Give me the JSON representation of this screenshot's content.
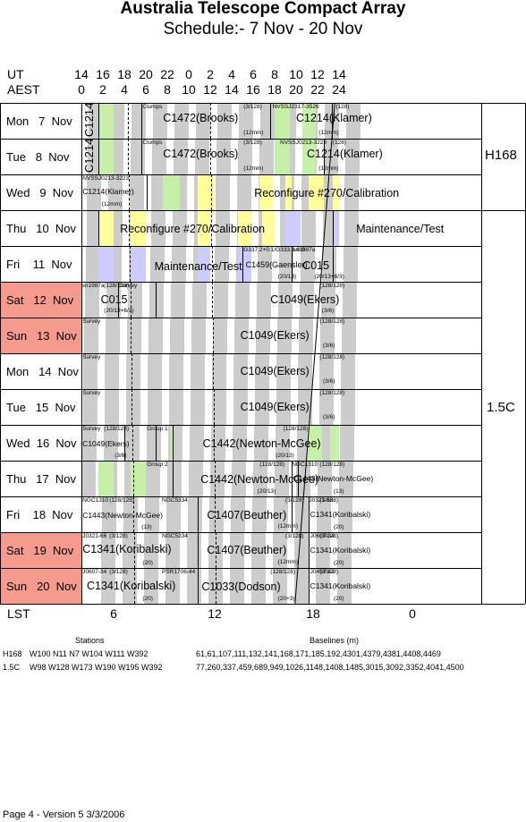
{
  "header": {
    "title": "Australia Telescope Compact Array",
    "subtitle": "Schedule:- 7  Nov - 20 Nov"
  },
  "axes": {
    "ut_label": "UT",
    "aest_label": "AEST",
    "lst_label": "LST",
    "ut_ticks": [
      "14",
      "16",
      "18",
      "20",
      "22",
      "0",
      "2",
      "4",
      "6",
      "8",
      "10",
      "12",
      "14"
    ],
    "aest_ticks": [
      "0",
      "2",
      "4",
      "6",
      "8",
      "10",
      "12",
      "14",
      "16",
      "18",
      "20",
      "22",
      "24"
    ],
    "lst_ticks": [
      "6",
      "12",
      "18",
      "0"
    ]
  },
  "days": [
    {
      "label": "Mon   7  Nov",
      "weekend": false
    },
    {
      "label": "Tue   8  Nov",
      "weekend": false
    },
    {
      "label": "Wed   9  Nov",
      "weekend": false
    },
    {
      "label": "Thu   10  Nov",
      "weekend": false
    },
    {
      "label": "Fri    11  Nov",
      "weekend": false
    },
    {
      "label": "Sat   12  Nov",
      "weekend": true
    },
    {
      "label": "Sun   13  Nov",
      "weekend": true
    },
    {
      "label": "Mon   14  Nov",
      "weekend": false
    },
    {
      "label": "Tue   15  Nov",
      "weekend": false
    },
    {
      "label": "Wed  16  Nov",
      "weekend": false
    },
    {
      "label": "Thu   17  Nov",
      "weekend": false
    },
    {
      "label": "Fri    18  Nov",
      "weekend": false
    },
    {
      "label": "Sat   19  Nov",
      "weekend": true
    },
    {
      "label": "Sun   20  Nov",
      "weekend": true
    }
  ],
  "configs": {
    "c1": "H168",
    "c2": "1.5C"
  },
  "blocks": {
    "r0_vert": "C1214",
    "r0_clumps": "Clumps",
    "r0_main": "C1472(Brooks)",
    "r0_band": "(3/128)",
    "r0_12mm": "(12mm)",
    "r0_nvss": "NVSSJ2317-3526",
    "r0_k": "C1214(Klamer)",
    "r0_kband": "(128)",
    "r0_k12": "(12mm)",
    "r1_vert": "C1214",
    "r1_clumps": "Clumps",
    "r1_main": "C1472(Brooks)",
    "r1_band": "(3/128)",
    "r1_12mm": "(12mm)",
    "r1_nvss": "NVSSJ0213-3223",
    "r1_k": "C1214(Klamer)",
    "r1_kband": "(128)",
    "r1_k12": "(12mm)",
    "r2_nvss": "NVSSJ0213-3223",
    "r2_k": "C1214(Klamer)",
    "r2_12": "(12mm)",
    "r2_main": "Reconfigure #270/Calibration",
    "r3_a": "Reconfigure #270/Calibration",
    "r3_b": "Maintenance/Test",
    "r4_a": "Maintenance/Test",
    "r4_src": "G337.2+0.1/G333.3-0.0",
    "r4_c1459": "C1459(Gaensler)",
    "r4_2013": "(20/13)",
    "r4_sn": "sn1987a",
    "r4_c015": "C015",
    "r4_band": "(20/13+6/3)",
    "r5_sn": "sn1987a",
    "r5_band": "(128/128)",
    "r5_survey": "Survey",
    "r5_c015": "C015",
    "r5_b2": "(20/13+6/3)",
    "r5_main": "C1049(Ekers)",
    "r5_rb": "(128/128)",
    "r5_r36": "(3/6)",
    "r6_survey": "Survey",
    "r6_main": "C1049(Ekers)",
    "r6_rb": "(128/128)",
    "r6_r36": "(3/6)",
    "r7_survey": "Survey",
    "r7_main": "C1049(Ekers)",
    "r7_rb": "(128/128)",
    "r7_r36": "(3/6)",
    "r8_survey": "Survey",
    "r8_main": "C1049(Ekers)",
    "r8_rb": "(128/128)",
    "r8_r36": "(3/6)",
    "r9_survey": "Survey",
    "r9_band": "(128/128)",
    "r9_ek": "C1049(Ekers)",
    "r9_36": "(3/6)",
    "r9_group": "Group 1",
    "r9_main": "C1442(Newton-McGee)",
    "r9_2013": "(20/13)",
    "r9_rb": "(128/128)",
    "r10_group": "Group 2",
    "r10_main": "C1442(Newton-McGee)",
    "r10_band": "(128/128)",
    "r10_2013": "(20/13)",
    "r10_ngc": "NGC1310",
    "r10_c1443": "C1443(Newton-McGee)",
    "r10_rb": "(128/128)",
    "r10_13": "(13)",
    "r11_ngc": "NGC1310",
    "r11_band": "(128/128)",
    "r11_c1443": "C1443(Newton-McGee)",
    "r11_13": "(13)",
    "r11_ngc2": "NGC5334",
    "r11_main": "C1407(Beuther)",
    "r11_b2": "(3/128)",
    "r11_12": "(12mm)",
    "r11_j": "J0321-66",
    "r11_c1341": "C1341(Koribalski)",
    "r11_rb": "(3/128)",
    "r11_20": "(20)",
    "r12_j": "J0321-66",
    "r12_band": "(3/128)",
    "r12_c1341": "C1341(Koribalski)",
    "r12_20": "(20)",
    "r12_ngc": "NGC5334",
    "r12_main": "C1407(Beuther)",
    "r12_b2": "(3/128)",
    "r12_12": "(12mm)",
    "r12_j2": "J0607-34",
    "r12_c1341b": "C1341(Koribalski)",
    "r12_rb": "(3/128)",
    "r12_20b": "(20)",
    "r13_j": "J0607-34",
    "r13_band": "(3/128)",
    "r13_c1341": "C1341(Koribalski)",
    "r13_20": "(20)",
    "r13_psr": "PSR1706-44",
    "r13_main": "C1033(Dodson)",
    "r13_b2": "(128/128)",
    "r13_203": "(20+3)",
    "r13_j2": "J0457-42",
    "r13_c1341b": "C1341(Koribalski)",
    "r13_rb": "(3/128)",
    "r13_20b": "(20)"
  },
  "footer": {
    "stations_label": "Stations",
    "baselines_label": "Baselines (m)",
    "h168_name": "H168",
    "h168_stations": "W100  N11  N7  W104  W111  W392",
    "h168_baselines": "61,61,107,111,132,141,168,171,185,192,4301,4379,4381,4408,4469",
    "c15_name": "1.5C",
    "c15_stations": "W98  W128  W173  W190  W195  W392",
    "c15_baselines": "77,260,337,459,689,949,1026,1148,1408,1485,3015,3092,3352,4041,4500",
    "page": "Page 4 - Version 5  3/3/2006"
  },
  "colors": {
    "gray": "#cccccc",
    "green": "#c6f0a8",
    "yellow": "#ffff99",
    "lavender": "#ccccff",
    "weekend": "#f59a8c"
  }
}
